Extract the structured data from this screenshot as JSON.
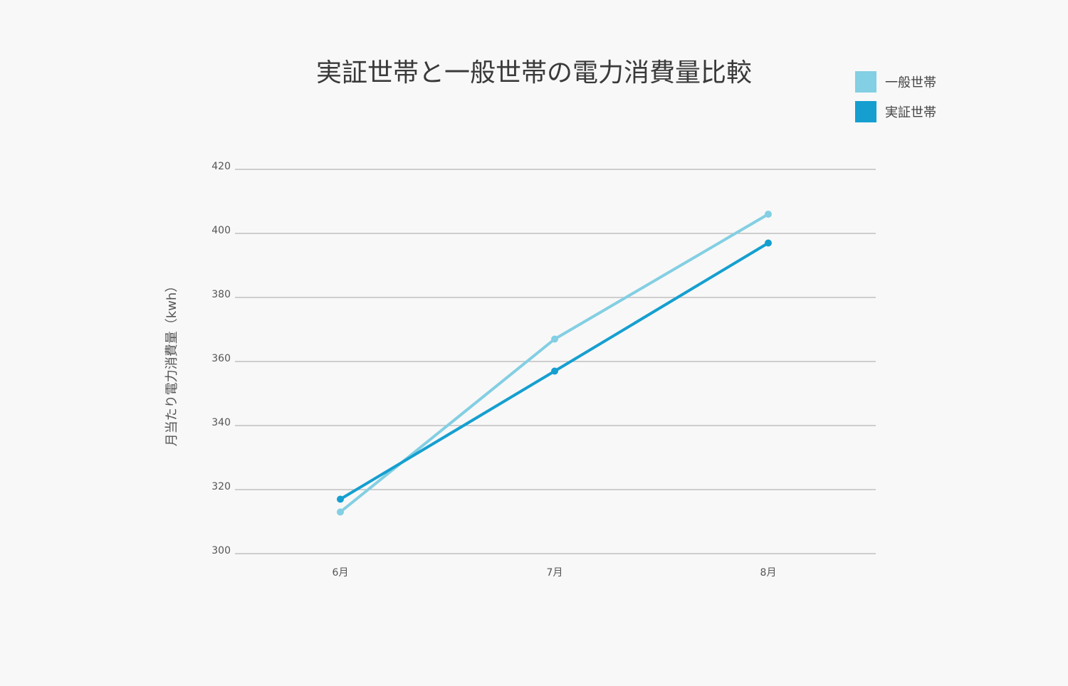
{
  "chart_data": {
    "type": "line",
    "title": "実証世帯と一般世帯の電力消費量比較",
    "xlabel": "",
    "ylabel": "月当たり電力消費量（kwh）",
    "categories": [
      "6月",
      "7月",
      "8月"
    ],
    "ylim": [
      300,
      420
    ],
    "yticks": [
      300,
      320,
      340,
      360,
      380,
      400,
      420
    ],
    "grid": true,
    "legend_position": "top-right",
    "series": [
      {
        "name": "一般世帯",
        "color": "#83cfe3",
        "values": [
          313,
          367,
          406
        ]
      },
      {
        "name": "実証世帯",
        "color": "#159fd0",
        "values": [
          317,
          357,
          397
        ]
      }
    ]
  }
}
